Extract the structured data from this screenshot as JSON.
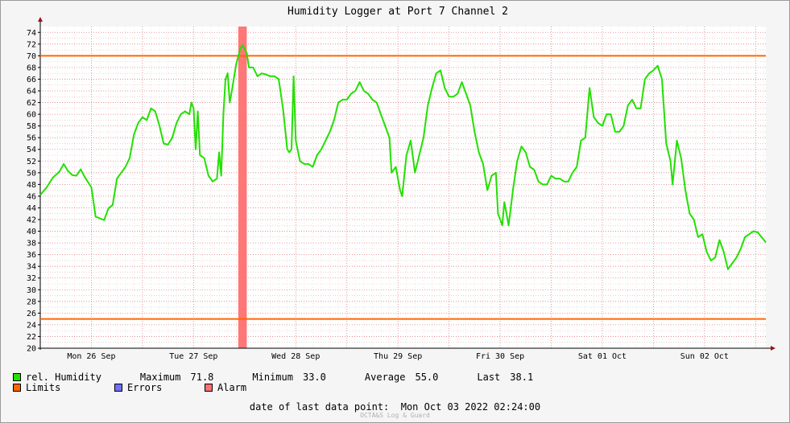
{
  "chart_data": {
    "type": "line",
    "title": "Humidity Logger at Port 7 Channel 2",
    "xlabel": "",
    "ylabel": "",
    "ylim": [
      20,
      75
    ],
    "yticks": [
      20,
      22,
      24,
      26,
      28,
      30,
      32,
      34,
      36,
      38,
      40,
      42,
      44,
      46,
      48,
      50,
      52,
      54,
      56,
      58,
      60,
      62,
      64,
      66,
      68,
      70,
      72,
      74
    ],
    "xlim": [
      "2022-09-26 00:00",
      "2022-10-03 02:24"
    ],
    "xtick_labels": [
      {
        "label": "Mon 26 Sep",
        "x": "2022-09-26 12:00"
      },
      {
        "label": "Tue 27 Sep",
        "x": "2022-09-27 12:00"
      },
      {
        "label": "Wed 28 Sep",
        "x": "2022-09-28 12:00"
      },
      {
        "label": "Thu 29 Sep",
        "x": "2022-09-29 12:00"
      },
      {
        "label": "Fri 30 Sep",
        "x": "2022-09-30 12:00"
      },
      {
        "label": "Sat 01 Oct",
        "x": "2022-10-01 12:00"
      },
      {
        "label": "Sun 02 Oct",
        "x": "2022-10-02 12:00"
      }
    ],
    "grid": true,
    "limits": [
      70,
      25
    ],
    "alarm_band": [
      "2022-09-27 22:30",
      "2022-09-28 00:30"
    ],
    "series": [
      {
        "name": "rel. Humidity",
        "color": "#22e000",
        "points": [
          [
            "2022-09-26 00:00",
            46.2
          ],
          [
            "2022-09-26 01:30",
            47.5
          ],
          [
            "2022-09-26 03:00",
            49.2
          ],
          [
            "2022-09-26 04:30",
            50.2
          ],
          [
            "2022-09-26 05:30",
            51.5
          ],
          [
            "2022-09-26 06:30",
            50.3
          ],
          [
            "2022-09-26 07:30",
            49.6
          ],
          [
            "2022-09-26 08:30",
            49.5
          ],
          [
            "2022-09-26 09:30",
            50.6
          ],
          [
            "2022-09-26 10:30",
            49.2
          ],
          [
            "2022-09-26 12:00",
            47.5
          ],
          [
            "2022-09-26 13:00",
            42.5
          ],
          [
            "2022-09-26 14:00",
            42.2
          ],
          [
            "2022-09-26 15:00",
            41.9
          ],
          [
            "2022-09-26 16:00",
            43.9
          ],
          [
            "2022-09-26 17:00",
            44.5
          ],
          [
            "2022-09-26 18:00",
            49.0
          ],
          [
            "2022-09-26 19:00",
            50.0
          ],
          [
            "2022-09-26 20:00",
            51.0
          ],
          [
            "2022-09-26 21:00",
            52.5
          ],
          [
            "2022-09-26 22:00",
            56.5
          ],
          [
            "2022-09-26 23:00",
            58.5
          ],
          [
            "2022-09-27 00:00",
            59.5
          ],
          [
            "2022-09-27 01:00",
            59.0
          ],
          [
            "2022-09-27 02:00",
            61.0
          ],
          [
            "2022-09-27 03:00",
            60.5
          ],
          [
            "2022-09-27 04:00",
            58.0
          ],
          [
            "2022-09-27 05:00",
            55.0
          ],
          [
            "2022-09-27 06:00",
            54.8
          ],
          [
            "2022-09-27 07:00",
            56.0
          ],
          [
            "2022-09-27 08:00",
            58.5
          ],
          [
            "2022-09-27 09:00",
            60.0
          ],
          [
            "2022-09-27 10:00",
            60.5
          ],
          [
            "2022-09-27 11:00",
            60.0
          ],
          [
            "2022-09-27 11:30",
            62.0
          ],
          [
            "2022-09-27 12:00",
            61.0
          ],
          [
            "2022-09-27 12:30",
            54.0
          ],
          [
            "2022-09-27 13:00",
            60.5
          ],
          [
            "2022-09-27 13:30",
            53.0
          ],
          [
            "2022-09-27 14:30",
            52.5
          ],
          [
            "2022-09-27 15:30",
            49.5
          ],
          [
            "2022-09-27 16:30",
            48.5
          ],
          [
            "2022-09-27 17:30",
            49.0
          ],
          [
            "2022-09-27 18:00",
            53.5
          ],
          [
            "2022-09-27 18:30",
            49.5
          ],
          [
            "2022-09-27 19:00",
            60.0
          ],
          [
            "2022-09-27 19:30",
            66.0
          ],
          [
            "2022-09-27 20:00",
            67.0
          ],
          [
            "2022-09-27 20:30",
            62.0
          ],
          [
            "2022-09-27 21:00",
            64.0
          ],
          [
            "2022-09-27 22:00",
            68.5
          ],
          [
            "2022-09-27 23:00",
            71.3
          ],
          [
            "2022-09-27 23:30",
            71.8
          ],
          [
            "2022-09-28 00:30",
            70.5
          ],
          [
            "2022-09-28 01:00",
            68.0
          ],
          [
            "2022-09-28 02:00",
            68.0
          ],
          [
            "2022-09-28 03:00",
            66.5
          ],
          [
            "2022-09-28 04:00",
            67.0
          ],
          [
            "2022-09-28 05:00",
            66.8
          ],
          [
            "2022-09-28 06:00",
            66.5
          ],
          [
            "2022-09-28 07:00",
            66.5
          ],
          [
            "2022-09-28 08:00",
            66.0
          ],
          [
            "2022-09-28 09:00",
            61.0
          ],
          [
            "2022-09-28 10:00",
            54.0
          ],
          [
            "2022-09-28 10:30",
            53.5
          ],
          [
            "2022-09-28 11:00",
            54.0
          ],
          [
            "2022-09-28 11:30",
            66.5
          ],
          [
            "2022-09-28 12:00",
            55.5
          ],
          [
            "2022-09-28 13:00",
            52.0
          ],
          [
            "2022-09-28 14:00",
            51.5
          ],
          [
            "2022-09-28 15:00",
            51.5
          ],
          [
            "2022-09-28 16:00",
            51.0
          ],
          [
            "2022-09-28 17:00",
            53.0
          ],
          [
            "2022-09-28 18:00",
            54.0
          ],
          [
            "2022-09-28 19:00",
            55.5
          ],
          [
            "2022-09-28 20:00",
            57.0
          ],
          [
            "2022-09-28 21:00",
            59.0
          ],
          [
            "2022-09-28 22:00",
            62.0
          ],
          [
            "2022-09-28 23:00",
            62.5
          ],
          [
            "2022-09-29 00:00",
            62.5
          ],
          [
            "2022-09-29 01:00",
            63.5
          ],
          [
            "2022-09-29 02:00",
            64.0
          ],
          [
            "2022-09-29 03:00",
            65.5
          ],
          [
            "2022-09-29 04:00",
            64.0
          ],
          [
            "2022-09-29 05:00",
            63.5
          ],
          [
            "2022-09-29 06:00",
            62.5
          ],
          [
            "2022-09-29 07:00",
            62.0
          ],
          [
            "2022-09-29 08:00",
            60.0
          ],
          [
            "2022-09-29 09:00",
            58.0
          ],
          [
            "2022-09-29 10:00",
            56.0
          ],
          [
            "2022-09-29 10:30",
            50.0
          ],
          [
            "2022-09-29 11:30",
            51.0
          ],
          [
            "2022-09-29 12:30",
            47.0
          ],
          [
            "2022-09-29 13:00",
            46.0
          ],
          [
            "2022-09-29 14:00",
            53.0
          ],
          [
            "2022-09-29 15:00",
            55.5
          ],
          [
            "2022-09-29 16:00",
            50.0
          ],
          [
            "2022-09-29 17:00",
            53.0
          ],
          [
            "2022-09-29 18:00",
            56.0
          ],
          [
            "2022-09-29 19:00",
            61.5
          ],
          [
            "2022-09-29 20:00",
            64.5
          ],
          [
            "2022-09-29 21:00",
            67.0
          ],
          [
            "2022-09-29 22:00",
            67.5
          ],
          [
            "2022-09-29 23:00",
            64.5
          ],
          [
            "2022-09-30 00:00",
            63.0
          ],
          [
            "2022-09-30 01:00",
            63.0
          ],
          [
            "2022-09-30 02:00",
            63.5
          ],
          [
            "2022-09-30 03:00",
            65.5
          ],
          [
            "2022-09-30 04:00",
            63.5
          ],
          [
            "2022-09-30 05:00",
            61.5
          ],
          [
            "2022-09-30 06:00",
            57.0
          ],
          [
            "2022-09-30 07:00",
            53.5
          ],
          [
            "2022-09-30 08:00",
            51.5
          ],
          [
            "2022-09-30 09:00",
            47.0
          ],
          [
            "2022-09-30 10:00",
            49.5
          ],
          [
            "2022-09-30 11:00",
            50.0
          ],
          [
            "2022-09-30 11:30",
            43.0
          ],
          [
            "2022-09-30 12:30",
            41.0
          ],
          [
            "2022-09-30 13:00",
            45.0
          ],
          [
            "2022-09-30 14:00",
            41.0
          ],
          [
            "2022-09-30 15:00",
            47.0
          ],
          [
            "2022-09-30 16:00",
            52.0
          ],
          [
            "2022-09-30 17:00",
            54.5
          ],
          [
            "2022-09-30 18:00",
            53.5
          ],
          [
            "2022-09-30 19:00",
            51.0
          ],
          [
            "2022-09-30 20:00",
            50.5
          ],
          [
            "2022-09-30 21:00",
            48.5
          ],
          [
            "2022-09-30 22:00",
            48.0
          ],
          [
            "2022-09-30 23:00",
            48.0
          ],
          [
            "2022-10-01 00:00",
            49.5
          ],
          [
            "2022-10-01 01:00",
            49.0
          ],
          [
            "2022-10-01 02:00",
            49.0
          ],
          [
            "2022-10-01 03:00",
            48.5
          ],
          [
            "2022-10-01 04:00",
            48.5
          ],
          [
            "2022-10-01 05:00",
            50.0
          ],
          [
            "2022-10-01 06:00",
            51.0
          ],
          [
            "2022-10-01 07:00",
            55.5
          ],
          [
            "2022-10-01 08:00",
            56.0
          ],
          [
            "2022-10-01 09:00",
            64.5
          ],
          [
            "2022-10-01 10:00",
            59.5
          ],
          [
            "2022-10-01 11:00",
            58.5
          ],
          [
            "2022-10-01 12:00",
            58.0
          ],
          [
            "2022-10-01 13:00",
            60.0
          ],
          [
            "2022-10-01 14:00",
            60.0
          ],
          [
            "2022-10-01 15:00",
            57.0
          ],
          [
            "2022-10-01 16:00",
            57.0
          ],
          [
            "2022-10-01 17:00",
            58.0
          ],
          [
            "2022-10-01 18:00",
            61.5
          ],
          [
            "2022-10-01 19:00",
            62.5
          ],
          [
            "2022-10-01 20:00",
            61.0
          ],
          [
            "2022-10-01 21:00",
            61.0
          ],
          [
            "2022-10-01 22:00",
            66.0
          ],
          [
            "2022-10-01 23:00",
            67.0
          ],
          [
            "2022-10-02 00:00",
            67.5
          ],
          [
            "2022-10-02 01:00",
            68.3
          ],
          [
            "2022-10-02 02:00",
            66.0
          ],
          [
            "2022-10-02 03:00",
            55.0
          ],
          [
            "2022-10-02 04:00",
            52.0
          ],
          [
            "2022-10-02 04:30",
            48.0
          ],
          [
            "2022-10-02 05:30",
            55.5
          ],
          [
            "2022-10-02 06:30",
            52.5
          ],
          [
            "2022-10-02 07:30",
            47.0
          ],
          [
            "2022-10-02 08:30",
            43.0
          ],
          [
            "2022-10-02 09:30",
            42.0
          ],
          [
            "2022-10-02 10:30",
            39.0
          ],
          [
            "2022-10-02 11:30",
            39.5
          ],
          [
            "2022-10-02 12:30",
            36.5
          ],
          [
            "2022-10-02 13:30",
            35.0
          ],
          [
            "2022-10-02 14:30",
            35.5
          ],
          [
            "2022-10-02 15:30",
            38.5
          ],
          [
            "2022-10-02 16:30",
            36.5
          ],
          [
            "2022-10-02 17:30",
            33.5
          ],
          [
            "2022-10-02 18:30",
            34.5
          ],
          [
            "2022-10-02 19:30",
            35.5
          ],
          [
            "2022-10-02 20:30",
            37.0
          ],
          [
            "2022-10-02 21:30",
            39.0
          ],
          [
            "2022-10-02 22:30",
            39.5
          ],
          [
            "2022-10-02 23:30",
            40.0
          ],
          [
            "2022-10-03 00:30",
            39.8
          ],
          [
            "2022-10-03 02:24",
            38.1
          ]
        ]
      }
    ]
  },
  "legend": {
    "humidity_label": "rel. Humidity",
    "humidity_color": "#22e000",
    "limits_label": "Limits",
    "limits_color": "#ff6600",
    "errors_label": "Errors",
    "errors_color": "#7070ff",
    "alarm_label": "Alarm",
    "alarm_color": "#ff7070"
  },
  "stats": {
    "maximum_label": "Maximum",
    "maximum_value": "71.8",
    "minimum_label": "Minimum",
    "minimum_value": "33.0",
    "average_label": "Average",
    "average_value": "55.0",
    "last_label": "Last",
    "last_value": "38.1"
  },
  "footer": "date of last data point:  Mon Oct 03 2022 02:24:00",
  "watermark": "OCTA&S Log & Guard"
}
